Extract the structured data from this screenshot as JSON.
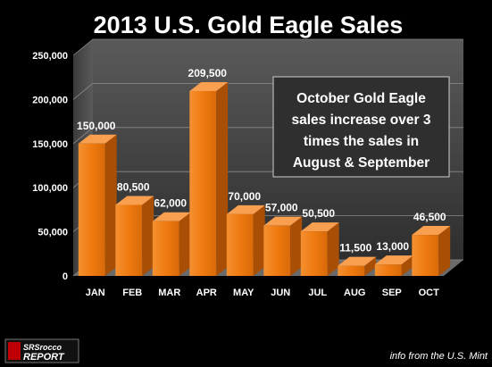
{
  "chart_data": {
    "type": "bar",
    "title": "2013 U.S. Gold Eagle Sales",
    "categories": [
      "JAN",
      "FEB",
      "MAR",
      "APR",
      "MAY",
      "JUN",
      "JUL",
      "AUG",
      "SEP",
      "OCT"
    ],
    "values": [
      150000,
      80500,
      62000,
      209500,
      70000,
      57000,
      50500,
      11500,
      13000,
      46500
    ],
    "data_labels": [
      "150,000",
      "80,500",
      "62,000",
      "209,500",
      "70,000",
      "57,000",
      "50,500",
      "11,500",
      "13,000",
      "46,500"
    ],
    "yticks": [
      "0",
      "50,000",
      "100,000",
      "150,000",
      "200,000",
      "250,000"
    ],
    "ylim": [
      0,
      250000
    ],
    "xlabel": "",
    "ylabel": "",
    "bar_color": "#F07A10",
    "bar_color_dark": "#A84E05",
    "bar_color_light": "#F8A050",
    "annotation": [
      "October Gold Eagle",
      "sales increase over 3",
      "times the sales in",
      "August & September"
    ],
    "grid": true
  },
  "logo": {
    "line1": "SRSrocco",
    "line2": "REPORT"
  },
  "source": "info from the U.S. Mint"
}
